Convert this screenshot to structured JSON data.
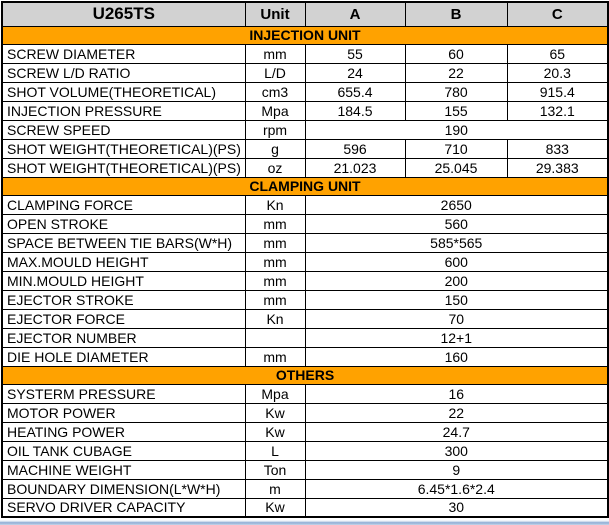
{
  "header": {
    "model": "U265TS",
    "unit_label": "Unit",
    "columns": [
      "A",
      "B",
      "C"
    ]
  },
  "colors": {
    "section_header_bg": "#ffa200",
    "table_header_bg": "#d2d2d2",
    "border": "#000000",
    "bottom_window_edge": "#8eadd4"
  },
  "sections": [
    {
      "title": "INJECTION UNIT",
      "rows": [
        {
          "name": "SCREW DIAMETER",
          "unit": "mm",
          "values": [
            "55",
            "60",
            "65"
          ]
        },
        {
          "name": "SCREW L/D RATIO",
          "unit": "L/D",
          "values": [
            "24",
            "22",
            "20.3"
          ]
        },
        {
          "name": "SHOT VOLUME(THEORETICAL)",
          "unit": "cm3",
          "values": [
            "655.4",
            "780",
            "915.4"
          ]
        },
        {
          "name": "INJECTION PRESSURE",
          "unit": "Mpa",
          "values": [
            "184.5",
            "155",
            "132.1"
          ]
        },
        {
          "name": "SCREW SPEED",
          "unit": "rpm",
          "values": [
            "190"
          ]
        },
        {
          "name": "SHOT WEIGHT(THEORETICAL)(PS)",
          "unit": "g",
          "values": [
            "596",
            "710",
            "833"
          ]
        },
        {
          "name": "SHOT WEIGHT(THEORETICAL)(PS)",
          "unit": "oz",
          "values": [
            "21.023",
            "25.045",
            "29.383"
          ]
        }
      ]
    },
    {
      "title": "CLAMPING UNIT",
      "rows": [
        {
          "name": "CLAMPING FORCE",
          "unit": "Kn",
          "values": [
            "2650"
          ]
        },
        {
          "name": "OPEN STROKE",
          "unit": "mm",
          "values": [
            "560"
          ]
        },
        {
          "name": "SPACE BETWEEN TIE BARS(W*H)",
          "unit": "mm",
          "values": [
            "585*565"
          ]
        },
        {
          "name": "MAX.MOULD HEIGHT",
          "unit": "mm",
          "values": [
            "600"
          ]
        },
        {
          "name": "MIN.MOULD HEIGHT",
          "unit": "mm",
          "values": [
            "200"
          ]
        },
        {
          "name": "EJECTOR STROKE",
          "unit": "mm",
          "values": [
            "150"
          ]
        },
        {
          "name": "EJECTOR FORCE",
          "unit": "Kn",
          "values": [
            "70"
          ]
        },
        {
          "name": "EJECTOR NUMBER",
          "unit": "",
          "values": [
            "12+1"
          ]
        },
        {
          "name": "DIE HOLE DIAMETER",
          "unit": "mm",
          "values": [
            "160"
          ]
        }
      ]
    },
    {
      "title": "OTHERS",
      "rows": [
        {
          "name": "SYSTERM PRESSURE",
          "unit": "Mpa",
          "values": [
            "16"
          ]
        },
        {
          "name": "MOTOR POWER",
          "unit": "Kw",
          "values": [
            "22"
          ]
        },
        {
          "name": "HEATING POWER",
          "unit": "Kw",
          "values": [
            "24.7"
          ]
        },
        {
          "name": "OIL TANK CUBAGE",
          "unit": "L",
          "values": [
            "300"
          ]
        },
        {
          "name": "MACHINE WEIGHT",
          "unit": "Ton",
          "values": [
            "9"
          ]
        },
        {
          "name": "BOUNDARY DIMENSION(L*W*H)",
          "unit": "m",
          "values": [
            "6.45*1.6*2.4"
          ]
        },
        {
          "name": "SERVO DRIVER CAPACITY",
          "unit": "Kw",
          "values": [
            "30"
          ]
        }
      ]
    }
  ]
}
